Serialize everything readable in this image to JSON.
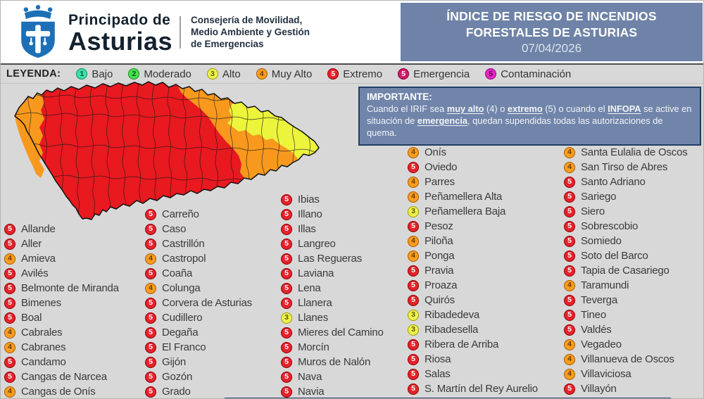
{
  "header": {
    "org_name_line1": "Principado de",
    "org_name_line2": "Asturias",
    "department_lines": [
      "Consejería de Movilidad,",
      "Medio Ambiente y Gestión",
      "de Emergencias"
    ],
    "title_line1": "ÍNDICE DE RIESGO DE INCENDIOS",
    "title_line2": "FORESTALES DE ASTURIAS",
    "date": "07/04/2026"
  },
  "legend": {
    "label": "LEYENDA:",
    "items": [
      {
        "key": "bajo",
        "num": "1",
        "label": "Bajo"
      },
      {
        "key": "moderado",
        "num": "2",
        "label": "Moderado"
      },
      {
        "key": "alto",
        "num": "3",
        "label": "Alto"
      },
      {
        "key": "muy-alto",
        "num": "4",
        "label": "Muy Alto"
      },
      {
        "key": "extremo",
        "num": "5",
        "label": "Extremo"
      },
      {
        "key": "emergencia",
        "num": "5",
        "label": "Emergencia"
      },
      {
        "key": "contaminacion",
        "num": "5",
        "label": "Contaminación"
      }
    ]
  },
  "notice": {
    "title": "IMPORTANTE:",
    "segments": [
      {
        "text": "Cuando el IRIF sea ",
        "em": false
      },
      {
        "text": "muy alto",
        "em": true
      },
      {
        "text": " (4) o ",
        "em": false
      },
      {
        "text": "extremo",
        "em": true
      },
      {
        "text": " (5) o cuando el ",
        "em": false
      },
      {
        "text": "INFOPA",
        "em": true
      },
      {
        "text": " se active en situación de ",
        "em": false
      },
      {
        "text": "emergencia",
        "em": true
      },
      {
        "text": ", quedan supendidas todas las autorizaciones de quema.",
        "em": false
      }
    ]
  },
  "map": {
    "region": "Asturias",
    "type": "choropleth-risk-map",
    "risk_colors": {
      "alto": "#edf43c",
      "muy_alto": "#f8991d",
      "extremo": "#e8191f"
    }
  },
  "colors": {
    "page_bg": "#d8d8d8",
    "header_bg": "#ffffff",
    "title_bg": "#6e83a7",
    "notice_bg": "#7185aa",
    "notice_border": "#1f3e66",
    "logo_blue": "#1d70b7"
  },
  "municipalities": {
    "columns": [
      {
        "items": [
          {
            "level": "5",
            "name": "Allande"
          },
          {
            "level": "5",
            "name": "Aller"
          },
          {
            "level": "4",
            "name": "Amieva"
          },
          {
            "level": "5",
            "name": "Avilés"
          },
          {
            "level": "5",
            "name": "Belmonte de Miranda"
          },
          {
            "level": "5",
            "name": "Bimenes"
          },
          {
            "level": "5",
            "name": "Boal"
          },
          {
            "level": "4",
            "name": "Cabrales"
          },
          {
            "level": "4",
            "name": "Cabranes"
          },
          {
            "level": "5",
            "name": "Candamo"
          },
          {
            "level": "5",
            "name": "Cangas de Narcea"
          },
          {
            "level": "4",
            "name": "Cangas de Onís"
          }
        ]
      },
      {
        "items": [
          {
            "level": "5",
            "name": "Carreño"
          },
          {
            "level": "5",
            "name": "Caso"
          },
          {
            "level": "5",
            "name": "Castrillón"
          },
          {
            "level": "4",
            "name": "Castropol"
          },
          {
            "level": "5",
            "name": "Coaña"
          },
          {
            "level": "4",
            "name": "Colunga"
          },
          {
            "level": "5",
            "name": "Corvera de Asturias"
          },
          {
            "level": "5",
            "name": "Cudillero"
          },
          {
            "level": "5",
            "name": "Degaña"
          },
          {
            "level": "5",
            "name": "El Franco"
          },
          {
            "level": "5",
            "name": "Gijón"
          },
          {
            "level": "5",
            "name": "Gozón"
          },
          {
            "level": "5",
            "name": "Grado"
          }
        ]
      },
      {
        "items": [
          {
            "level": "5",
            "name": "Ibias"
          },
          {
            "level": "5",
            "name": "Illano"
          },
          {
            "level": "5",
            "name": "Illas"
          },
          {
            "level": "5",
            "name": "Langreo"
          },
          {
            "level": "5",
            "name": "Las Regueras"
          },
          {
            "level": "5",
            "name": "Laviana"
          },
          {
            "level": "5",
            "name": "Lena"
          },
          {
            "level": "5",
            "name": "Llanera"
          },
          {
            "level": "3",
            "name": "Llanes"
          },
          {
            "level": "5",
            "name": "Mieres del Camino"
          },
          {
            "level": "5",
            "name": "Morcín"
          },
          {
            "level": "5",
            "name": "Muros de Nalón"
          },
          {
            "level": "5",
            "name": "Nava"
          },
          {
            "level": "5",
            "name": "Navia"
          }
        ]
      },
      {
        "items": [
          {
            "level": "4",
            "name": "Onís"
          },
          {
            "level": "5",
            "name": "Oviedo"
          },
          {
            "level": "4",
            "name": "Parres"
          },
          {
            "level": "4",
            "name": "Peñamellera Alta"
          },
          {
            "level": "3",
            "name": "Peñamellera Baja"
          },
          {
            "level": "5",
            "name": "Pesoz"
          },
          {
            "level": "4",
            "name": "Piloña"
          },
          {
            "level": "4",
            "name": "Ponga"
          },
          {
            "level": "5",
            "name": "Pravia"
          },
          {
            "level": "5",
            "name": "Proaza"
          },
          {
            "level": "5",
            "name": "Quirós"
          },
          {
            "level": "3",
            "name": "Ribadedeva"
          },
          {
            "level": "3",
            "name": "Ribadesella"
          },
          {
            "level": "5",
            "name": "Ribera de Arriba"
          },
          {
            "level": "5",
            "name": "Riosa"
          },
          {
            "level": "5",
            "name": "Salas"
          },
          {
            "level": "5",
            "name": "S. Martín del Rey Aurelio"
          }
        ]
      },
      {
        "items": [
          {
            "level": "4",
            "name": "Santa Eulalia de Oscos"
          },
          {
            "level": "4",
            "name": "San Tirso de Abres"
          },
          {
            "level": "5",
            "name": "Santo Adriano"
          },
          {
            "level": "5",
            "name": "Sariego"
          },
          {
            "level": "5",
            "name": "Siero"
          },
          {
            "level": "5",
            "name": "Sobrescobio"
          },
          {
            "level": "5",
            "name": "Somiedo"
          },
          {
            "level": "5",
            "name": "Soto del Barco"
          },
          {
            "level": "5",
            "name": "Tapia de Casariego"
          },
          {
            "level": "4",
            "name": "Taramundi"
          },
          {
            "level": "5",
            "name": "Teverga"
          },
          {
            "level": "5",
            "name": "Tineo"
          },
          {
            "level": "5",
            "name": "Valdés"
          },
          {
            "level": "4",
            "name": "Vegadeo"
          },
          {
            "level": "4",
            "name": "Villanueva de Oscos"
          },
          {
            "level": "4",
            "name": "Villaviciosa"
          },
          {
            "level": "5",
            "name": "Villayón"
          }
        ]
      }
    ]
  }
}
